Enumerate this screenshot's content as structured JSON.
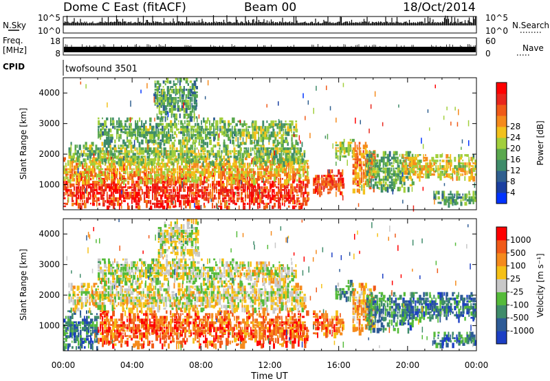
{
  "header": {
    "site": "Dome C East (fitACF)",
    "beam": "Beam 00",
    "date": "18/Oct/2014"
  },
  "panels": {
    "nsky": {
      "label": "N.Sky",
      "ticks": [
        "10^5",
        "10^0"
      ],
      "right_label": "N.Search",
      "right_ticks": [
        "10^5",
        "10^0"
      ]
    },
    "freq": {
      "label": "Freq.",
      "unit": "[MHz]",
      "ticks": [
        "18",
        "8"
      ],
      "right_label": "Nave",
      "right_ticks": [
        "60",
        "0"
      ]
    },
    "cpid": {
      "label": "CPID",
      "text": "twofsound 3501"
    }
  },
  "chart_data": [
    {
      "type": "heatmap",
      "title": "",
      "xlabel": "",
      "ylabel": "Slant Range [km]",
      "xlim": [
        0,
        24
      ],
      "ylim": [
        180,
        4500
      ],
      "yticks": [
        1000,
        2000,
        3000,
        4000
      ],
      "colorbar": {
        "label": "Power [dB]",
        "ticks": [
          "4",
          "8",
          "12",
          "16",
          "20",
          "24",
          "28"
        ],
        "colors": [
          "#0033ff",
          "#1a3fa0",
          "#2f5f8f",
          "#3f8c6a",
          "#5aa84e",
          "#a2cf3c",
          "#f2c11c",
          "#f58a1c",
          "#f05a18",
          "#e8261c",
          "#ff0000"
        ]
      },
      "echo_regions": [
        {
          "t0": 0.0,
          "t1": 14.2,
          "r0": 300,
          "r1": 1400,
          "level": 0.88
        },
        {
          "t0": 0.0,
          "t1": 14.2,
          "r0": 1100,
          "r1": 1900,
          "level": 0.62
        },
        {
          "t0": 0.3,
          "t1": 14.0,
          "r0": 1700,
          "r1": 2400,
          "level": 0.45
        },
        {
          "t0": 2.0,
          "t1": 10.0,
          "r0": 2400,
          "r1": 3200,
          "level": 0.4
        },
        {
          "t0": 5.3,
          "t1": 7.8,
          "r0": 3200,
          "r1": 4500,
          "level": 0.35
        },
        {
          "t0": 10.0,
          "t1": 13.5,
          "r0": 2400,
          "r1": 3100,
          "level": 0.45
        },
        {
          "t0": 14.5,
          "t1": 16.2,
          "r0": 700,
          "r1": 1500,
          "level": 0.82
        },
        {
          "t0": 15.8,
          "t1": 16.8,
          "r0": 1900,
          "r1": 2500,
          "level": 0.5
        },
        {
          "t0": 16.8,
          "t1": 18.0,
          "r0": 800,
          "r1": 2400,
          "level": 0.72
        },
        {
          "t0": 17.6,
          "t1": 20.3,
          "r0": 900,
          "r1": 2100,
          "level": 0.4
        },
        {
          "t0": 19.7,
          "t1": 24.0,
          "r0": 1200,
          "r1": 2000,
          "level": 0.58
        },
        {
          "t0": 21.5,
          "t1": 24.0,
          "r0": 400,
          "r1": 800,
          "level": 0.35
        }
      ]
    },
    {
      "type": "heatmap",
      "title": "",
      "xlabel": "Time UT",
      "ylabel": "Slant Range [km]",
      "xlim": [
        0,
        24
      ],
      "ylim": [
        180,
        4500
      ],
      "yticks": [
        1000,
        2000,
        3000,
        4000
      ],
      "xticks": [
        "00:00",
        "04:00",
        "08:00",
        "12:00",
        "16:00",
        "20:00",
        "00:00"
      ],
      "colorbar": {
        "label": "Velocity [m s⁻¹]",
        "ticks": [
          "1000",
          "500",
          "100",
          "25",
          "-25",
          "-100",
          "-500",
          "-1000"
        ],
        "colors": [
          "#1c3fc4",
          "#2e5b96",
          "#3f8c6a",
          "#55bb3a",
          "#c8c8c8",
          "#f5c016",
          "#f58a1c",
          "#f05a18",
          "#ff0000"
        ]
      },
      "echo_regions": [
        {
          "t0": 0.0,
          "t1": 2.0,
          "r0": 300,
          "r1": 1500,
          "level": 0.2
        },
        {
          "t0": 2.0,
          "t1": 14.2,
          "r0": 400,
          "r1": 1500,
          "level": 0.85
        },
        {
          "t0": 0.3,
          "t1": 14.0,
          "r0": 1500,
          "r1": 2400,
          "level": 0.55
        },
        {
          "t0": 2.0,
          "t1": 10.0,
          "r0": 2400,
          "r1": 3200,
          "level": 0.5
        },
        {
          "t0": 5.5,
          "t1": 7.8,
          "r0": 3300,
          "r1": 4500,
          "level": 0.5
        },
        {
          "t0": 10.0,
          "t1": 13.5,
          "r0": 2400,
          "r1": 3100,
          "level": 0.55
        },
        {
          "t0": 14.5,
          "t1": 16.2,
          "r0": 700,
          "r1": 1500,
          "level": 0.82
        },
        {
          "t0": 15.8,
          "t1": 16.8,
          "r0": 1900,
          "r1": 2500,
          "level": 0.3
        },
        {
          "t0": 16.8,
          "t1": 18.0,
          "r0": 800,
          "r1": 2400,
          "level": 0.7
        },
        {
          "t0": 17.6,
          "t1": 20.3,
          "r0": 900,
          "r1": 2100,
          "level": 0.25
        },
        {
          "t0": 19.7,
          "t1": 24.0,
          "r0": 1200,
          "r1": 2100,
          "level": 0.2
        },
        {
          "t0": 21.5,
          "t1": 24.0,
          "r0": 400,
          "r1": 800,
          "level": 0.2
        }
      ]
    }
  ]
}
